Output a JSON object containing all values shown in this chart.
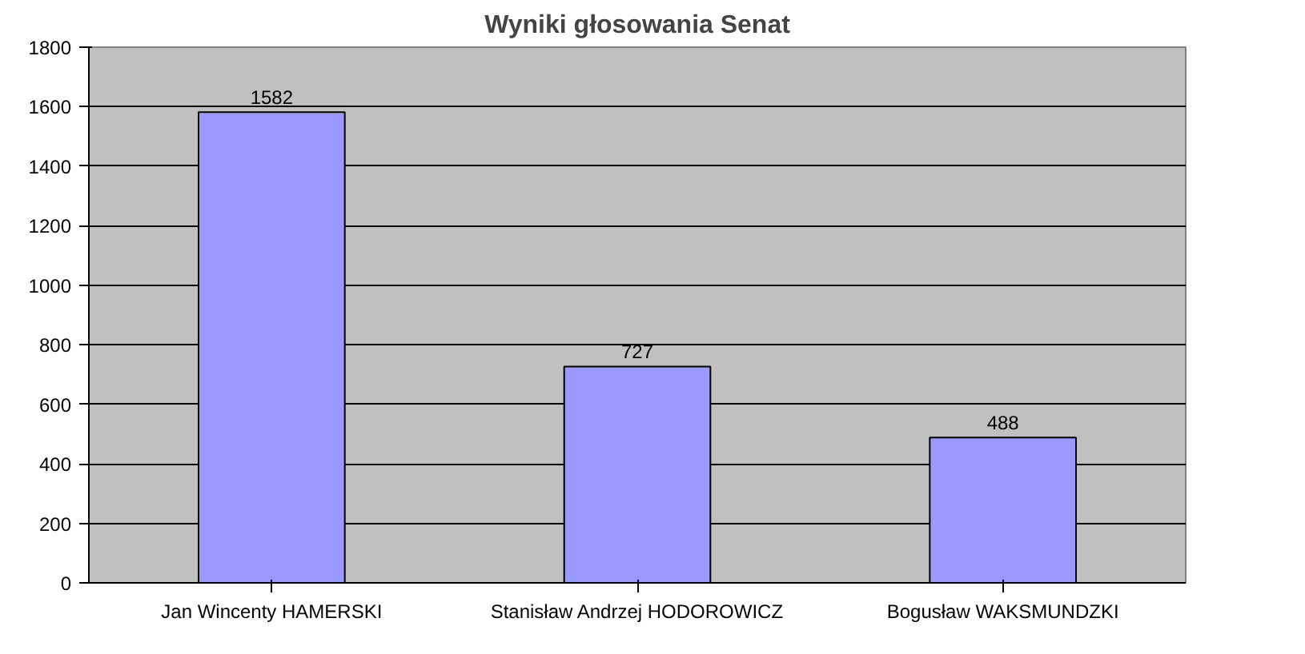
{
  "chart_data": {
    "type": "bar",
    "title": "Wyniki głosowania Senat",
    "categories": [
      "Jan Wincenty HAMERSKI",
      "Stanisław Andrzej HODOROWICZ",
      "Bogusław WAKSMUNDZKI"
    ],
    "values": [
      1582,
      727,
      488
    ],
    "color": "#9999ff",
    "data_labels": true,
    "ylim": [
      0,
      1800
    ],
    "yticks": [
      0,
      200,
      400,
      600,
      800,
      1000,
      1200,
      1400,
      1600,
      1800
    ],
    "grid": "y"
  }
}
